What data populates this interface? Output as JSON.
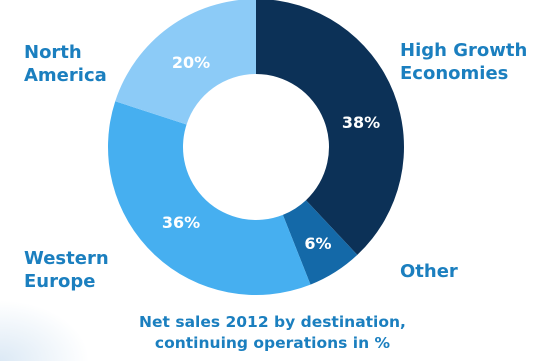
{
  "chart_data": {
    "type": "pie",
    "variant": "donut",
    "slices": [
      {
        "label": "High Growth Economies",
        "label_lines": [
          "High Growth",
          "Economies"
        ],
        "value": 38,
        "display": "38%",
        "color": "#0c3157"
      },
      {
        "label": "Other",
        "label_lines": [
          "Other"
        ],
        "value": 6,
        "display": "6%",
        "color": "#1469a8"
      },
      {
        "label": "Western Europe",
        "label_lines": [
          "Western",
          "Europe"
        ],
        "value": 36,
        "display": "36%",
        "color": "#46aff0"
      },
      {
        "label": "North America",
        "label_lines": [
          "North",
          "America"
        ],
        "value": 20,
        "display": "20%",
        "color": "#8ccbf7"
      }
    ],
    "label_color": "#1b7fbf",
    "caption_lines": [
      "Net sales 2012 by destination,",
      "continuing operations in %"
    ]
  }
}
